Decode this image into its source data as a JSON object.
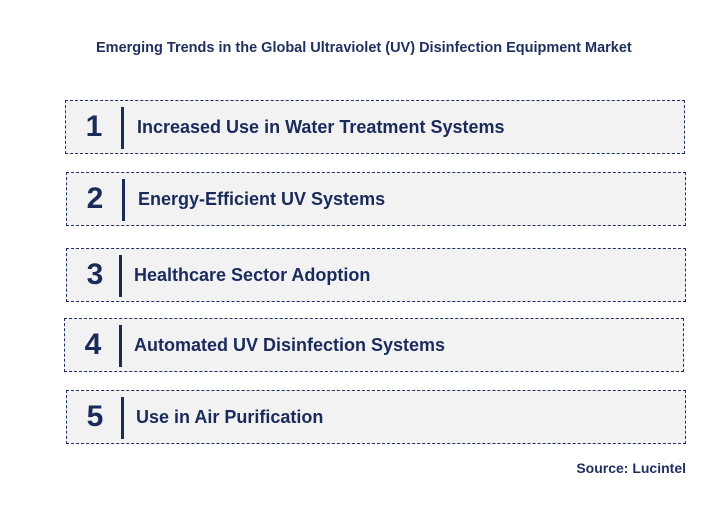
{
  "title": "Emerging Trends in the Global Ultraviolet (UV) Disinfection Equipment Market",
  "items": [
    {
      "number": "1",
      "label": "Increased Use in Water Treatment Systems"
    },
    {
      "number": "2",
      "label": "Energy-Efficient UV Systems"
    },
    {
      "number": "3",
      "label": "Healthcare Sector Adoption"
    },
    {
      "number": "4",
      "label": "Automated UV Disinfection Systems"
    },
    {
      "number": "5",
      "label": "Use in Air Purification"
    }
  ],
  "source": "Source: Lucintel"
}
